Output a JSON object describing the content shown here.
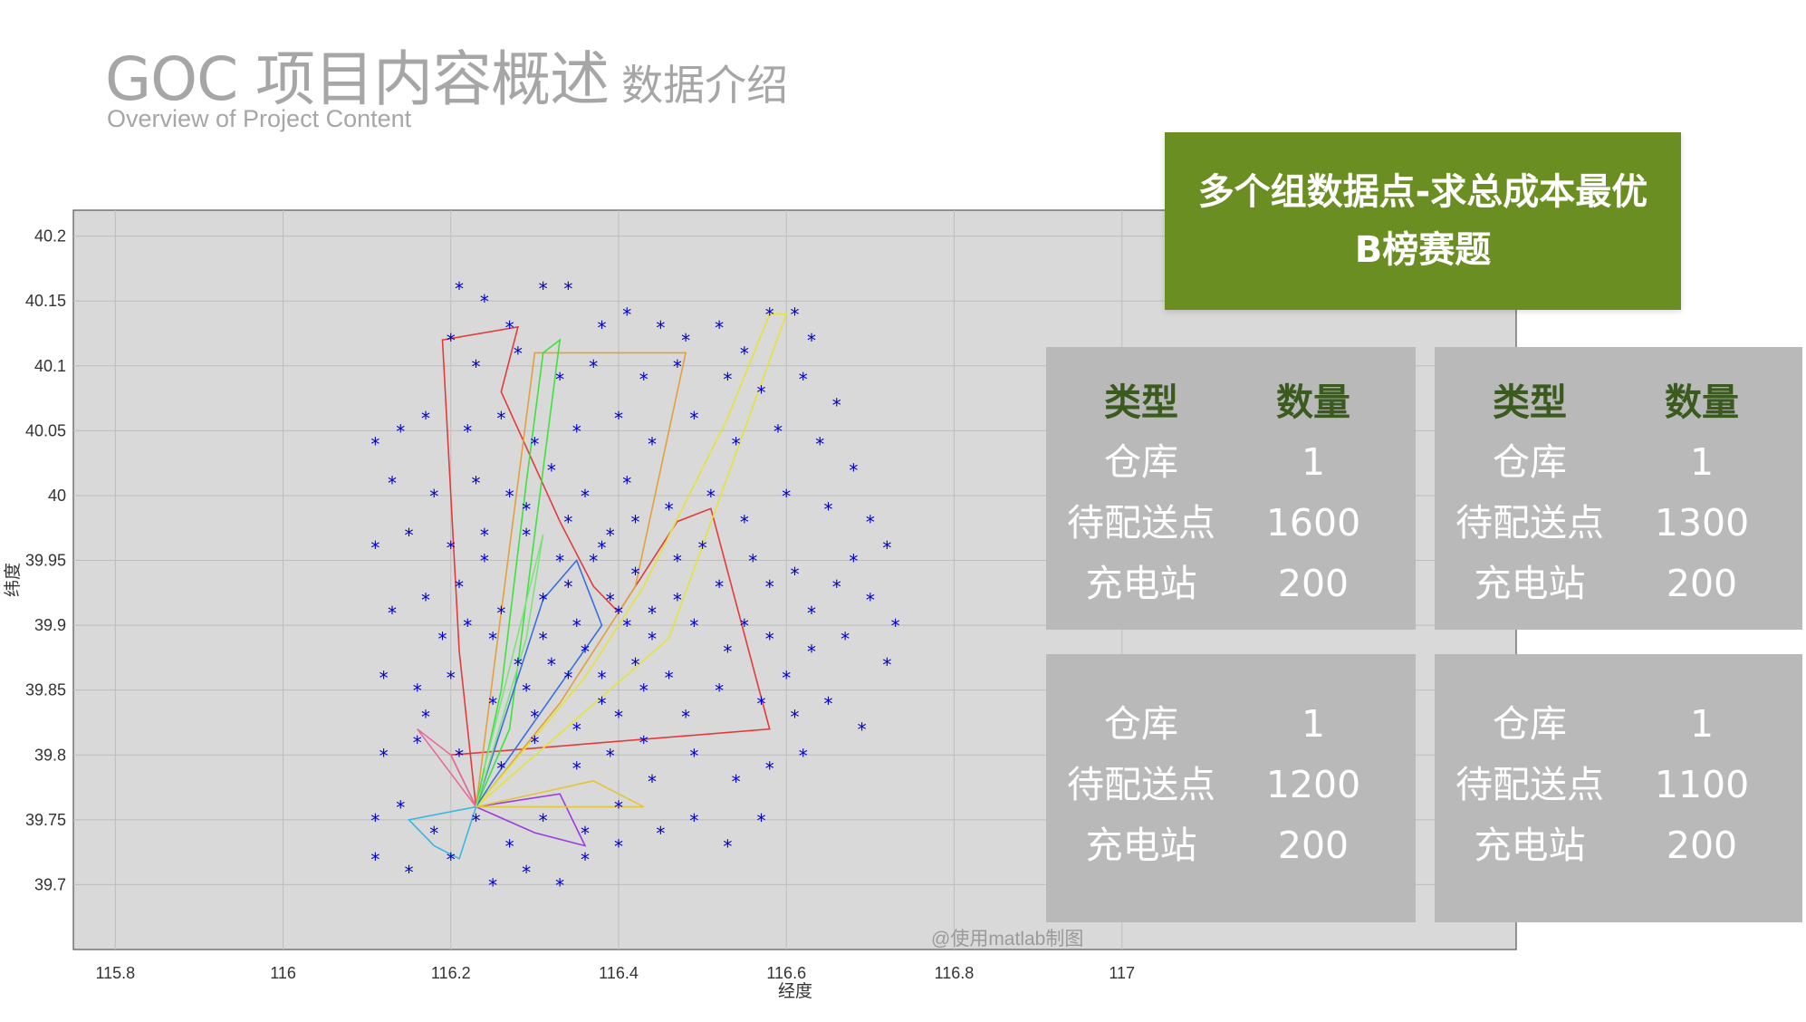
{
  "slide": {
    "title": "GOC 项目内容概述",
    "title_sub": "数据介绍",
    "subtitle": "Overview of Project Content"
  },
  "banner": {
    "line1": "多个组数据点-求总成本最优",
    "line2": "B榜赛题"
  },
  "watermark": "@使用matlab制图",
  "panels": [
    {
      "header": {
        "type": "类型",
        "count": "数量"
      },
      "rows": [
        {
          "type": "仓库",
          "count": "1"
        },
        {
          "type": "待配送点",
          "count": "1600"
        },
        {
          "type": "充电站",
          "count": "200"
        }
      ]
    },
    {
      "header": {
        "type": "类型",
        "count": "数量"
      },
      "rows": [
        {
          "type": "仓库",
          "count": "1"
        },
        {
          "type": "待配送点",
          "count": "1300"
        },
        {
          "type": "充电站",
          "count": "200"
        }
      ]
    },
    {
      "rows": [
        {
          "type": "仓库",
          "count": "1"
        },
        {
          "type": "待配送点",
          "count": "1200"
        },
        {
          "type": "充电站",
          "count": "200"
        }
      ]
    },
    {
      "rows": [
        {
          "type": "仓库",
          "count": "1"
        },
        {
          "type": "待配送点",
          "count": "1100"
        },
        {
          "type": "充电站",
          "count": "200"
        }
      ]
    }
  ],
  "colors": {
    "panel_bg": "#b9b9b9",
    "panel_header": "#3a5a1e",
    "banner_bg": "#6b8e23",
    "title_gray": "#a6a6a6",
    "plot_bg": "#d9d9d9",
    "point": "#0000cc"
  },
  "chart_data": {
    "type": "scatter",
    "title": "",
    "xlabel": "经度",
    "ylabel": "纬度",
    "xlim": [
      115.75,
      117.47
    ],
    "ylim": [
      39.65,
      40.22
    ],
    "xticks": [
      115.8,
      116,
      116.2,
      116.4,
      116.6,
      116.8,
      117
    ],
    "yticks": [
      39.7,
      39.75,
      39.8,
      39.85,
      39.9,
      39.95,
      40,
      40.05,
      40.1,
      40.15,
      40.2
    ],
    "grid": true,
    "marker": "*",
    "series": [
      {
        "points": [
          [
            116.21,
            40.16
          ],
          [
            116.24,
            40.15
          ],
          [
            116.27,
            40.13
          ],
          [
            116.31,
            40.16
          ],
          [
            116.34,
            40.16
          ],
          [
            116.38,
            40.13
          ],
          [
            116.41,
            40.14
          ],
          [
            116.45,
            40.13
          ],
          [
            116.48,
            40.12
          ],
          [
            116.52,
            40.13
          ],
          [
            116.55,
            40.11
          ],
          [
            116.58,
            40.14
          ],
          [
            116.61,
            40.14
          ],
          [
            116.63,
            40.12
          ],
          [
            116.2,
            40.12
          ],
          [
            116.23,
            40.1
          ],
          [
            116.28,
            40.11
          ],
          [
            116.33,
            40.09
          ],
          [
            116.37,
            40.1
          ],
          [
            116.43,
            40.09
          ],
          [
            116.47,
            40.1
          ],
          [
            116.53,
            40.09
          ],
          [
            116.57,
            40.08
          ],
          [
            116.62,
            40.09
          ],
          [
            116.66,
            40.07
          ],
          [
            116.14,
            40.05
          ],
          [
            116.17,
            40.06
          ],
          [
            116.22,
            40.05
          ],
          [
            116.26,
            40.06
          ],
          [
            116.3,
            40.04
          ],
          [
            116.35,
            40.05
          ],
          [
            116.4,
            40.06
          ],
          [
            116.44,
            40.04
          ],
          [
            116.49,
            40.06
          ],
          [
            116.54,
            40.04
          ],
          [
            116.59,
            40.05
          ],
          [
            116.64,
            40.04
          ],
          [
            116.68,
            40.02
          ],
          [
            116.11,
            40.04
          ],
          [
            116.13,
            40.01
          ],
          [
            116.18,
            40
          ],
          [
            116.23,
            40.01
          ],
          [
            116.27,
            40
          ],
          [
            116.32,
            40.02
          ],
          [
            116.36,
            40
          ],
          [
            116.41,
            40.01
          ],
          [
            116.46,
            39.99
          ],
          [
            116.51,
            40
          ],
          [
            116.55,
            39.98
          ],
          [
            116.6,
            40
          ],
          [
            116.65,
            39.99
          ],
          [
            116.7,
            39.98
          ],
          [
            116.72,
            39.96
          ],
          [
            116.11,
            39.96
          ],
          [
            116.15,
            39.97
          ],
          [
            116.2,
            39.96
          ],
          [
            116.24,
            39.95
          ],
          [
            116.29,
            39.97
          ],
          [
            116.33,
            39.95
          ],
          [
            116.38,
            39.96
          ],
          [
            116.42,
            39.94
          ],
          [
            116.47,
            39.95
          ],
          [
            116.52,
            39.93
          ],
          [
            116.56,
            39.95
          ],
          [
            116.61,
            39.94
          ],
          [
            116.66,
            39.93
          ],
          [
            116.7,
            39.92
          ],
          [
            116.73,
            39.9
          ],
          [
            116.13,
            39.91
          ],
          [
            116.17,
            39.92
          ],
          [
            116.22,
            39.9
          ],
          [
            116.26,
            39.91
          ],
          [
            116.31,
            39.89
          ],
          [
            116.35,
            39.9
          ],
          [
            116.4,
            39.91
          ],
          [
            116.44,
            39.89
          ],
          [
            116.49,
            39.9
          ],
          [
            116.53,
            39.88
          ],
          [
            116.58,
            39.89
          ],
          [
            116.63,
            39.88
          ],
          [
            116.67,
            39.89
          ],
          [
            116.72,
            39.87
          ],
          [
            116.12,
            39.86
          ],
          [
            116.16,
            39.85
          ],
          [
            116.2,
            39.86
          ],
          [
            116.25,
            39.84
          ],
          [
            116.29,
            39.85
          ],
          [
            116.34,
            39.86
          ],
          [
            116.38,
            39.84
          ],
          [
            116.43,
            39.85
          ],
          [
            116.48,
            39.83
          ],
          [
            116.52,
            39.85
          ],
          [
            116.57,
            39.84
          ],
          [
            116.61,
            39.83
          ],
          [
            116.65,
            39.84
          ],
          [
            116.69,
            39.82
          ],
          [
            116.12,
            39.8
          ],
          [
            116.16,
            39.81
          ],
          [
            116.21,
            39.8
          ],
          [
            116.26,
            39.79
          ],
          [
            116.3,
            39.81
          ],
          [
            116.35,
            39.79
          ],
          [
            116.39,
            39.8
          ],
          [
            116.44,
            39.78
          ],
          [
            116.49,
            39.8
          ],
          [
            116.54,
            39.78
          ],
          [
            116.58,
            39.79
          ],
          [
            116.62,
            39.8
          ],
          [
            116.11,
            39.75
          ],
          [
            116.14,
            39.76
          ],
          [
            116.18,
            39.74
          ],
          [
            116.23,
            39.75
          ],
          [
            116.27,
            39.73
          ],
          [
            116.31,
            39.75
          ],
          [
            116.36,
            39.74
          ],
          [
            116.4,
            39.76
          ],
          [
            116.45,
            39.74
          ],
          [
            116.49,
            39.75
          ],
          [
            116.53,
            39.73
          ],
          [
            116.57,
            39.75
          ],
          [
            116.11,
            39.72
          ],
          [
            116.15,
            39.71
          ],
          [
            116.2,
            39.72
          ],
          [
            116.25,
            39.7
          ],
          [
            116.29,
            39.71
          ],
          [
            116.33,
            39.7
          ],
          [
            116.36,
            39.72
          ],
          [
            116.4,
            39.73
          ],
          [
            116.37,
            39.95
          ],
          [
            116.39,
            39.92
          ],
          [
            116.41,
            39.9
          ],
          [
            116.36,
            39.88
          ],
          [
            116.42,
            39.87
          ],
          [
            116.34,
            39.93
          ],
          [
            116.44,
            39.91
          ],
          [
            116.38,
            39.86
          ],
          [
            116.32,
            39.87
          ],
          [
            116.46,
            39.86
          ],
          [
            116.4,
            39.83
          ],
          [
            116.35,
            39.82
          ],
          [
            116.3,
            39.83
          ],
          [
            116.43,
            39.81
          ],
          [
            116.28,
            39.87
          ],
          [
            116.25,
            39.89
          ],
          [
            116.47,
            39.92
          ],
          [
            116.31,
            39.92
          ],
          [
            116.39,
            39.97
          ],
          [
            116.42,
            39.98
          ],
          [
            116.34,
            39.98
          ],
          [
            116.29,
            39.99
          ],
          [
            116.5,
            39.96
          ],
          [
            116.24,
            39.97
          ],
          [
            116.21,
            39.93
          ],
          [
            116.19,
            39.89
          ],
          [
            116.17,
            39.83
          ],
          [
            116.55,
            39.9
          ],
          [
            116.58,
            39.93
          ],
          [
            116.6,
            39.86
          ],
          [
            116.63,
            39.91
          ],
          [
            116.68,
            39.95
          ]
        ]
      }
    ],
    "routes": [
      {
        "color": "#e33b3b",
        "points": [
          [
            116.23,
            39.76
          ],
          [
            116.21,
            39.88
          ],
          [
            116.19,
            40.12
          ],
          [
            116.28,
            40.13
          ],
          [
            116.26,
            40.08
          ],
          [
            116.33,
            39.98
          ],
          [
            116.37,
            39.93
          ],
          [
            116.4,
            39.91
          ],
          [
            116.47,
            39.98
          ],
          [
            116.51,
            39.99
          ],
          [
            116.58,
            39.82
          ],
          [
            116.2,
            39.8
          ],
          [
            116.23,
            39.76
          ]
        ]
      },
      {
        "color": "#e3a03b",
        "points": [
          [
            116.23,
            39.76
          ],
          [
            116.33,
            39.84
          ],
          [
            116.42,
            39.93
          ],
          [
            116.48,
            40.11
          ],
          [
            116.43,
            40.11
          ],
          [
            116.3,
            40.11
          ],
          [
            116.23,
            39.76
          ]
        ]
      },
      {
        "color": "#3be33b",
        "points": [
          [
            116.23,
            39.76
          ],
          [
            116.26,
            39.85
          ],
          [
            116.29,
            40.01
          ],
          [
            116.31,
            40.11
          ],
          [
            116.33,
            40.12
          ],
          [
            116.27,
            39.82
          ],
          [
            116.23,
            39.76
          ]
        ]
      },
      {
        "color": "#e3e33b",
        "points": [
          [
            116.23,
            39.76
          ],
          [
            116.36,
            39.86
          ],
          [
            116.43,
            39.93
          ],
          [
            116.53,
            40.06
          ],
          [
            116.58,
            40.14
          ],
          [
            116.6,
            40.14
          ],
          [
            116.46,
            39.89
          ],
          [
            116.23,
            39.76
          ]
        ]
      },
      {
        "color": "#3b6ee3",
        "points": [
          [
            116.23,
            39.76
          ],
          [
            116.31,
            39.92
          ],
          [
            116.35,
            39.95
          ],
          [
            116.38,
            39.9
          ],
          [
            116.25,
            39.78
          ],
          [
            116.23,
            39.76
          ]
        ]
      },
      {
        "color": "#3bb6e3",
        "points": [
          [
            116.23,
            39.76
          ],
          [
            116.15,
            39.75
          ],
          [
            116.18,
            39.73
          ],
          [
            116.21,
            39.72
          ],
          [
            116.23,
            39.76
          ]
        ]
      },
      {
        "color": "#9b3be3",
        "points": [
          [
            116.23,
            39.76
          ],
          [
            116.3,
            39.74
          ],
          [
            116.36,
            39.73
          ],
          [
            116.33,
            39.77
          ],
          [
            116.23,
            39.76
          ]
        ]
      },
      {
        "color": "#e36e9b",
        "points": [
          [
            116.23,
            39.76
          ],
          [
            116.2,
            39.8
          ],
          [
            116.16,
            39.82
          ],
          [
            116.23,
            39.76
          ]
        ]
      },
      {
        "color": "#e3c43b",
        "points": [
          [
            116.23,
            39.76
          ],
          [
            116.37,
            39.78
          ],
          [
            116.43,
            39.76
          ],
          [
            116.23,
            39.76
          ]
        ]
      },
      {
        "color": "#7ee37e",
        "points": [
          [
            116.23,
            39.76
          ],
          [
            116.29,
            39.89
          ],
          [
            116.31,
            39.97
          ],
          [
            116.24,
            39.79
          ]
        ]
      }
    ]
  }
}
